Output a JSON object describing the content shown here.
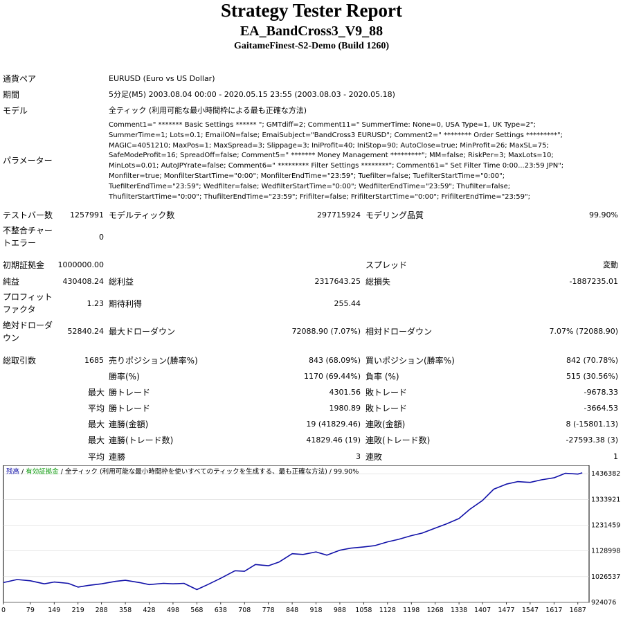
{
  "header": {
    "title": "Strategy Tester Report",
    "ea_name": "EA_BandCross3_V9_88",
    "server": "GaitameFinest-S2-Demo (Build 1260)"
  },
  "info": {
    "symbol_label": "通貨ペア",
    "symbol_value": "EURUSD (Euro vs US Dollar)",
    "period_label": "期間",
    "period_value": "5分足(M5) 2003.08.04 00:00 - 2020.05.15 23:55 (2003.08.03 - 2020.05.18)",
    "model_label": "モデル",
    "model_value": "全ティック (利用可能な最小時間枠による最も正確な方法)",
    "params_label": "パラメーター",
    "params_lines": [
      "Comment1=\" ******* Basic Settings ****** \"; GMTdiff=2; Comment11=\" SummerTime: None=0, USA Type=1, UK Type=2\";",
      "SummerTime=1; Lots=0.1; EmailON=false; EmaiSubject=\"BandCross3 EURUSD\"; Comment2=\" ******** Order Settings *********\";",
      "MAGIC=4051210; MaxPos=1; MaxSpread=3; Slippage=3; IniProfit=40; IniStop=90; AutoClose=true; MinProfit=26; MaxSL=75;",
      "SafeModeProfit=16; SpreadOff=false; Comment5=\" ******* Money Management *********\"; MM=false; RiskPer=3; MaxLots=10;",
      "MinLots=0.01; AutoJPYrate=false; Comment6=\" ********* Filter Settings ********\"; Comment61=\" Set Filter Time 0:00...23:59 JPN\";",
      "Monfilter=true; MonfilterStartTime=\"0:00\"; MonfilterEndTime=\"23:59\"; Tuefilter=false; TuefilterStartTime=\"0:00\";",
      "TuefilterEndTime=\"23:59\"; Wedfilter=false; WedfilterStartTime=\"0:00\"; WedfilterEndTime=\"23:59\"; Thufilter=false;",
      "ThufilterStartTime=\"0:00\"; ThufilterEndTime=\"23:59\"; Frifilter=false; FrifilterStartTime=\"0:00\"; FrifilterEndTime=\"23:59\";"
    ]
  },
  "stats": {
    "bars_label": "テストバー数",
    "bars_value": "1257991",
    "ticks_label": "モデルティック数",
    "ticks_value": "297715924",
    "quality_label": "モデリング品質",
    "quality_value": "99.90%",
    "mismatch_label_1": "不整合チャー",
    "mismatch_label_2": "トエラー",
    "mismatch_value": "0",
    "deposit_label": "初期証拠金",
    "deposit_value": "1000000.00",
    "spread_label": "スプレッド",
    "spread_value": "変動",
    "net_label": "純益",
    "net_value": "430408.24",
    "gross_profit_label": "総利益",
    "gross_profit_value": "2317643.25",
    "gross_loss_label": "総損失",
    "gross_loss_value": "-1887235.01",
    "pf_label_1": "プロフィット",
    "pf_label_2": "ファクタ",
    "pf_value": "1.23",
    "expected_label": "期待利得",
    "expected_value": "255.44",
    "abs_dd_label_1": "絶対ドローダ",
    "abs_dd_label_2": "ウン",
    "abs_dd_value": "52840.24",
    "max_dd_label": "最大ドローダウン",
    "max_dd_value": "72088.90 (7.07%)",
    "rel_dd_label": "相対ドローダウン",
    "rel_dd_value": "7.07% (72088.90)",
    "trades_label": "総取引数",
    "trades_value": "1685",
    "short_label": "売りポジション(勝率%)",
    "short_value": "843 (68.09%)",
    "long_label": "買いポジション(勝率%)",
    "long_value": "842 (70.78%)",
    "win_rate_label": "勝率(%)",
    "win_rate_value": "1170 (69.44%)",
    "loss_rate_label": "負率 (%)",
    "loss_rate_value": "515 (30.56%)",
    "max_prefix": "最大",
    "avg_prefix": "平均",
    "largest_win_label": "勝トレード",
    "largest_win_value": "4301.56",
    "largest_loss_label": "敗トレード",
    "largest_loss_value": "-9678.33",
    "avg_win_label": "勝トレード",
    "avg_win_value": "1980.89",
    "avg_loss_label": "敗トレード",
    "avg_loss_value": "-3664.53",
    "max_cons_win_label": "連勝(金額)",
    "max_cons_win_value": "19 (41829.46)",
    "max_cons_loss_label": "連敗(金額)",
    "max_cons_loss_value": "8 (-15801.13)",
    "max_cons_profit_label": "連勝(トレード数)",
    "max_cons_profit_value": "41829.46 (19)",
    "max_cons_lossamt_label": "連敗(トレード数)",
    "max_cons_lossamt_value": "-27593.38 (3)",
    "avg_cons_win_label": "連勝",
    "avg_cons_win_value": "3",
    "avg_cons_loss_label": "連敗",
    "avg_cons_loss_value": "1"
  },
  "chart_legend": {
    "balance": "残高",
    "sep1": " / ",
    "equity": "有効証拠金",
    "sep2": " / ",
    "rest": "全ティック (利用可能な最小時間枠を使いすべてのティックを生成する、最も正確な方法) / 99.90%"
  },
  "chart_data": {
    "type": "line",
    "title": "",
    "x_ticks": [
      0,
      79,
      149,
      219,
      288,
      358,
      428,
      498,
      568,
      638,
      708,
      778,
      848,
      918,
      988,
      1058,
      1128,
      1198,
      1268,
      1338,
      1407,
      1477,
      1547,
      1617,
      1687
    ],
    "y_ticks": [
      924076,
      1026537,
      1128998,
      1231459,
      1333921,
      1436382
    ],
    "ylim": [
      924076,
      1470000
    ],
    "xlim": [
      0,
      1720
    ],
    "series": [
      {
        "color": "#1010a8",
        "x": [
          0,
          40,
          79,
          120,
          149,
          190,
          219,
          250,
          288,
          330,
          358,
          400,
          428,
          470,
          498,
          530,
          568,
          600,
          638,
          680,
          708,
          740,
          778,
          810,
          848,
          880,
          918,
          950,
          988,
          1020,
          1058,
          1090,
          1128,
          1160,
          1198,
          1230,
          1268,
          1300,
          1338,
          1370,
          1407,
          1440,
          1477,
          1510,
          1547,
          1580,
          1617,
          1650,
          1687,
          1700
        ],
        "y": [
          1003000,
          1015000,
          1010000,
          998000,
          1005000,
          1000000,
          985000,
          992000,
          998000,
          1008000,
          1012000,
          1003000,
          995000,
          1000000,
          998000,
          1000000,
          975000,
          995000,
          1020000,
          1050000,
          1048000,
          1075000,
          1070000,
          1085000,
          1118000,
          1115000,
          1125000,
          1112000,
          1132000,
          1140000,
          1145000,
          1150000,
          1165000,
          1175000,
          1190000,
          1200000,
          1220000,
          1236000,
          1258000,
          1295000,
          1330000,
          1375000,
          1395000,
          1405000,
          1402000,
          1412000,
          1420000,
          1438000,
          1435000,
          1440000
        ]
      }
    ]
  }
}
